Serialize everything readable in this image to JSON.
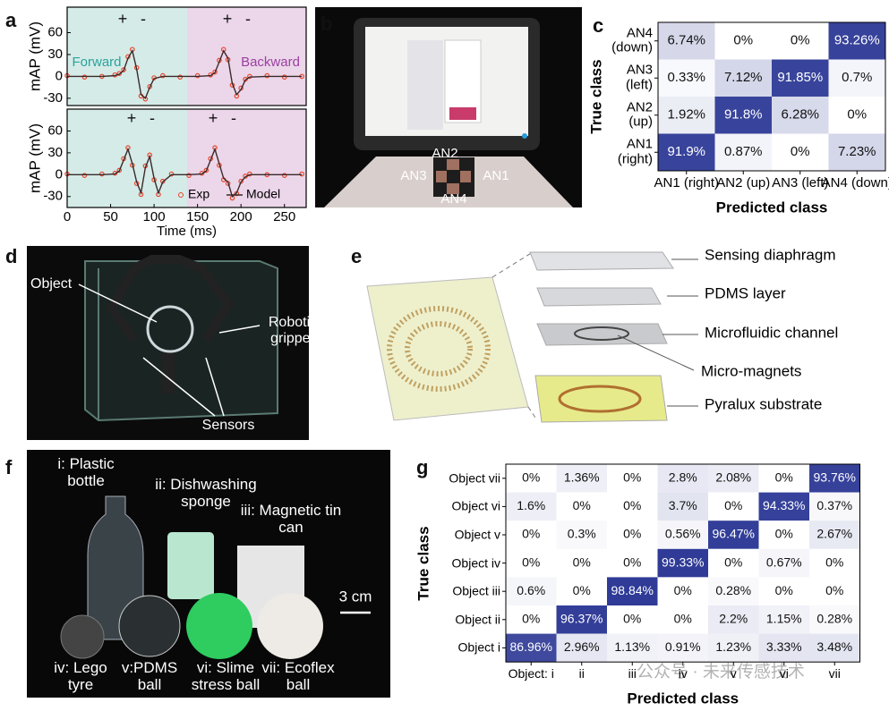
{
  "panel_letters": [
    "a",
    "b",
    "c",
    "d",
    "e",
    "f",
    "g"
  ],
  "chart_data": [
    {
      "type": "line",
      "ylabel": "mAP (mV)",
      "xlim": [
        0,
        275
      ],
      "ylim": [
        -40,
        95
      ],
      "yticks": [
        -30,
        0,
        30,
        60
      ],
      "x": [
        0,
        20,
        40,
        55,
        60,
        65,
        70,
        75,
        80,
        85,
        90,
        95,
        100,
        110,
        130,
        150,
        165,
        170,
        175,
        180,
        185,
        190,
        195,
        200,
        205,
        210,
        230,
        250,
        270
      ],
      "series": [
        {
          "color": "#e8452c",
          "marker": "circle",
          "values": [
            1,
            -1,
            0,
            2,
            4,
            9,
            27,
            37,
            12,
            -27,
            -31,
            -14,
            -2,
            1,
            -1,
            1,
            2,
            6,
            22,
            37,
            23,
            -12,
            -27,
            -16,
            -4,
            0,
            1,
            -1,
            0
          ]
        },
        {
          "color": "#3a2a2a",
          "values": [
            0,
            0,
            0,
            1,
            3,
            8,
            25,
            35,
            10,
            -25,
            -30,
            -15,
            -3,
            0,
            0,
            0,
            1,
            5,
            20,
            35,
            25,
            -10,
            -25,
            -18,
            -5,
            -1,
            0,
            0,
            0
          ]
        }
      ],
      "shaded_regions": [
        {
          "from": 0,
          "to": 138,
          "color": "#d5ebe8"
        },
        {
          "from": 138,
          "to": 275,
          "color": "#ecd6ea"
        }
      ],
      "annotations": [
        "+",
        "-",
        "Forward",
        "+",
        "-",
        "Backward"
      ]
    },
    {
      "type": "line",
      "ylabel": "mAP (mV)",
      "xlabel": "Time (ms)",
      "xlim": [
        0,
        275
      ],
      "ylim": [
        -45,
        90
      ],
      "yticks": [
        -30,
        0,
        30,
        60
      ],
      "xticks": [
        0,
        50,
        100,
        150,
        200,
        250
      ],
      "x": [
        0,
        20,
        40,
        55,
        60,
        65,
        70,
        75,
        80,
        85,
        90,
        95,
        100,
        105,
        110,
        120,
        140,
        155,
        160,
        165,
        170,
        175,
        180,
        185,
        190,
        195,
        200,
        205,
        210,
        230,
        250,
        270
      ],
      "series": [
        {
          "name": "Exp",
          "color": "#e8452c",
          "marker": "circle",
          "values": [
            1,
            -1,
            1,
            2,
            6,
            22,
            37,
            13,
            -12,
            -27,
            12,
            27,
            -7,
            -27,
            -9,
            1,
            -1,
            2,
            6,
            22,
            37,
            13,
            -7,
            -12,
            -32,
            -26,
            -9,
            -2,
            1,
            0,
            -1,
            1
          ]
        },
        {
          "name": "Model",
          "color": "#3a2a2a",
          "values": [
            0,
            0,
            0,
            1,
            5,
            20,
            35,
            15,
            -10,
            -25,
            10,
            25,
            -5,
            -25,
            -10,
            0,
            0,
            1,
            5,
            20,
            35,
            15,
            -5,
            -10,
            -30,
            -25,
            -10,
            -3,
            0,
            0,
            0,
            0
          ]
        }
      ],
      "legend": "lower right",
      "shaded_regions": [
        {
          "from": 0,
          "to": 138,
          "color": "#d5ebe8"
        },
        {
          "from": 138,
          "to": 275,
          "color": "#ecd6ea"
        }
      ],
      "annotations": [
        "+",
        "-",
        "+",
        "-"
      ]
    },
    {
      "type": "heatmap",
      "xlabel": "Predicted class",
      "ylabel": "True class",
      "color": "#2e3a96",
      "x_categories": [
        "AN1 (right)",
        "AN2 (up)",
        "AN3 (left)",
        "AN4 (down)"
      ],
      "y_categories": [
        "AN4 (down)",
        "AN3 (left)",
        "AN2 (up)",
        "AN1 (right)"
      ],
      "z": [
        [
          6.74,
          0,
          0,
          93.26
        ],
        [
          0.33,
          7.12,
          91.85,
          0.7
        ],
        [
          1.92,
          91.8,
          6.28,
          0
        ],
        [
          91.9,
          0.87,
          0,
          7.23
        ]
      ],
      "value_labels": [
        [
          "6.74%",
          "0%",
          "0%",
          "93.26%"
        ],
        [
          "0.33%",
          "7.12%",
          "91.85%",
          "0.7%"
        ],
        [
          "1.92%",
          "91.8%",
          "6.28%",
          "0%"
        ],
        [
          "91.9%",
          "0.87%",
          "0%",
          "7.23%"
        ]
      ]
    },
    {
      "type": "heatmap",
      "xlabel": "Predicted class",
      "ylabel": "True class",
      "color": "#2e3a96",
      "x_categories": [
        "Object: i",
        "ii",
        "iii",
        "iv",
        "v",
        "vi",
        "vii"
      ],
      "y_categories": [
        "Object vii",
        "Object vi",
        "Object v",
        "Object iv",
        "Object iii",
        "Object ii",
        "Object i"
      ],
      "z": [
        [
          0,
          1.36,
          0,
          2.8,
          2.08,
          0,
          93.76
        ],
        [
          1.6,
          0,
          0,
          3.7,
          0,
          94.33,
          0.37
        ],
        [
          0,
          0.3,
          0,
          0.56,
          96.47,
          0,
          2.67
        ],
        [
          0,
          0,
          0,
          99.33,
          0,
          0.67,
          0
        ],
        [
          0.6,
          0,
          98.84,
          0,
          0.28,
          0,
          0
        ],
        [
          0,
          96.37,
          0,
          0,
          2.2,
          1.15,
          0.28
        ],
        [
          86.96,
          2.96,
          1.13,
          0.91,
          1.23,
          3.33,
          3.48
        ]
      ],
      "value_labels": [
        [
          "0%",
          "1.36%",
          "0%",
          "2.8%",
          "2.08%",
          "0%",
          "93.76%"
        ],
        [
          "1.6%",
          "0%",
          "0%",
          "3.7%",
          "0%",
          "94.33%",
          "0.37%"
        ],
        [
          "0%",
          "0.3%",
          "0%",
          "0.56%",
          "96.47%",
          "0%",
          "2.67%"
        ],
        [
          "0%",
          "0%",
          "0%",
          "99.33%",
          "0%",
          "0.67%",
          "0%"
        ],
        [
          "0.6%",
          "0%",
          "98.84%",
          "0%",
          "0.28%",
          "0%",
          "0%"
        ],
        [
          "0%",
          "96.37%",
          "0%",
          "0%",
          "2.2%",
          "1.15%",
          "0.28%"
        ],
        [
          "86.96%",
          "2.96%",
          "1.13%",
          "0.91%",
          "1.23%",
          "3.33%",
          "3.48%"
        ]
      ]
    }
  ],
  "photo_b": {
    "labels": [
      "AN2",
      "AN3",
      "AN1",
      "AN4"
    ]
  },
  "photo_d": {
    "labels": [
      "Object",
      "Robotic gripper",
      "Sensors"
    ]
  },
  "diagram_e": {
    "layers": [
      "Sensing diaphragm",
      "PDMS layer",
      "Microfluidic channel",
      "Micro-magnets",
      "Pyralux substrate"
    ]
  },
  "photo_f": {
    "labels": [
      "i: Plastic bottle",
      "ii: Dishwashing sponge",
      "iii: Magnetic tin can",
      "iv: Lego tyre",
      "v:PDMS ball",
      "vi: Slime stress ball",
      "vii: Ecoflex ball"
    ],
    "scale_bar": "3 cm"
  },
  "watermark": "公众号 · 未来传感技术"
}
